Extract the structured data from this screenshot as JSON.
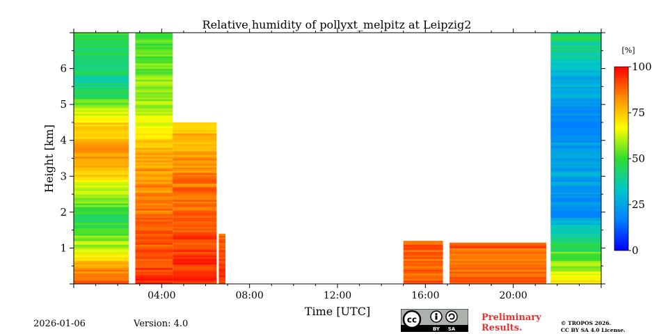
{
  "chart_data": {
    "type": "heatmap",
    "title": "Relative humidity of pollyxt_melpitz at Leipzig2",
    "xlabel": "Time [UTC]",
    "ylabel": "Height [km]",
    "xlim_hours": [
      0,
      24
    ],
    "ylim_km": [
      0,
      7
    ],
    "x_ticks": [
      {
        "value": 4,
        "label": "04:00"
      },
      {
        "value": 8,
        "label": "08:00"
      },
      {
        "value": 12,
        "label": "12:00"
      },
      {
        "value": 16,
        "label": "16:00"
      },
      {
        "value": 20,
        "label": "20:00"
      }
    ],
    "y_ticks": [
      {
        "value": 1,
        "label": "1"
      },
      {
        "value": 2,
        "label": "2"
      },
      {
        "value": 3,
        "label": "3"
      },
      {
        "value": 4,
        "label": "4"
      },
      {
        "value": 5,
        "label": "5"
      },
      {
        "value": 6,
        "label": "6"
      }
    ],
    "colorbar": {
      "unit_label": "[%]",
      "range": [
        0,
        100
      ],
      "ticks": [
        0,
        25,
        50,
        75,
        100
      ],
      "colors": [
        "#0000ff",
        "#0080ff",
        "#00c8c8",
        "#32dc32",
        "#ffff00",
        "#ff8c00",
        "#ff0000"
      ]
    },
    "data_gaps_hours": [
      [
        2.5,
        2.8
      ],
      [
        6.5,
        6.6
      ],
      [
        6.9,
        15.0
      ],
      [
        16.8,
        17.1
      ],
      [
        21.5,
        21.7
      ]
    ],
    "segments": [
      {
        "t_start": 0.0,
        "t_end": 2.5,
        "max_height_km": 7.0,
        "profile": [
          {
            "z": 0.0,
            "rh": 92
          },
          {
            "z": 0.5,
            "rh": 80
          },
          {
            "z": 1.0,
            "rh": 62
          },
          {
            "z": 1.8,
            "rh": 45
          },
          {
            "z": 2.5,
            "rh": 60
          },
          {
            "z": 3.5,
            "rh": 82
          },
          {
            "z": 4.5,
            "rh": 72
          },
          {
            "z": 5.5,
            "rh": 40
          },
          {
            "z": 7.0,
            "rh": 50
          }
        ]
      },
      {
        "t_start": 2.8,
        "t_end": 4.5,
        "max_height_km": 7.0,
        "profile": [
          {
            "z": 0.0,
            "rh": 95
          },
          {
            "z": 1.0,
            "rh": 90
          },
          {
            "z": 2.0,
            "rh": 85
          },
          {
            "z": 3.5,
            "rh": 80
          },
          {
            "z": 5.0,
            "rh": 60
          },
          {
            "z": 7.0,
            "rh": 50
          }
        ]
      },
      {
        "t_start": 4.5,
        "t_end": 6.5,
        "max_height_km": 4.5,
        "profile": [
          {
            "z": 0.0,
            "rh": 95
          },
          {
            "z": 1.2,
            "rh": 92
          },
          {
            "z": 2.5,
            "rh": 88
          },
          {
            "z": 4.5,
            "rh": 75
          }
        ]
      },
      {
        "t_start": 6.6,
        "t_end": 6.9,
        "max_height_km": 1.4,
        "profile": [
          {
            "z": 0.0,
            "rh": 95
          },
          {
            "z": 1.4,
            "rh": 88
          }
        ]
      },
      {
        "t_start": 15.0,
        "t_end": 16.8,
        "max_height_km": 1.2,
        "profile": [
          {
            "z": 0.0,
            "rh": 90
          },
          {
            "z": 1.2,
            "rh": 88
          }
        ]
      },
      {
        "t_start": 17.1,
        "t_end": 21.5,
        "max_height_km": 1.15,
        "profile": [
          {
            "z": 0.0,
            "rh": 88
          },
          {
            "z": 0.6,
            "rh": 86
          },
          {
            "z": 1.15,
            "rh": 90
          }
        ]
      },
      {
        "t_start": 21.7,
        "t_end": 24.0,
        "max_height_km": 7.0,
        "profile": [
          {
            "z": 0.0,
            "rh": 70
          },
          {
            "z": 0.7,
            "rh": 55
          },
          {
            "z": 1.2,
            "rh": 45
          },
          {
            "z": 2.0,
            "rh": 18
          },
          {
            "z": 3.0,
            "rh": 25
          },
          {
            "z": 4.5,
            "rh": 20
          },
          {
            "z": 6.0,
            "rh": 30
          },
          {
            "z": 7.0,
            "rh": 45
          }
        ]
      }
    ]
  },
  "footer": {
    "date": "2026-01-06",
    "version": "Version: 4.0",
    "preliminary_line1": "Preliminary",
    "preliminary_line2": "Results.",
    "copyright_line1": "© TROPOS 2026.",
    "copyright_line2": "CC BY SA 4.0 License.",
    "cc_badge": {
      "cc": "cc",
      "by": "BY",
      "sa": "SA"
    }
  }
}
